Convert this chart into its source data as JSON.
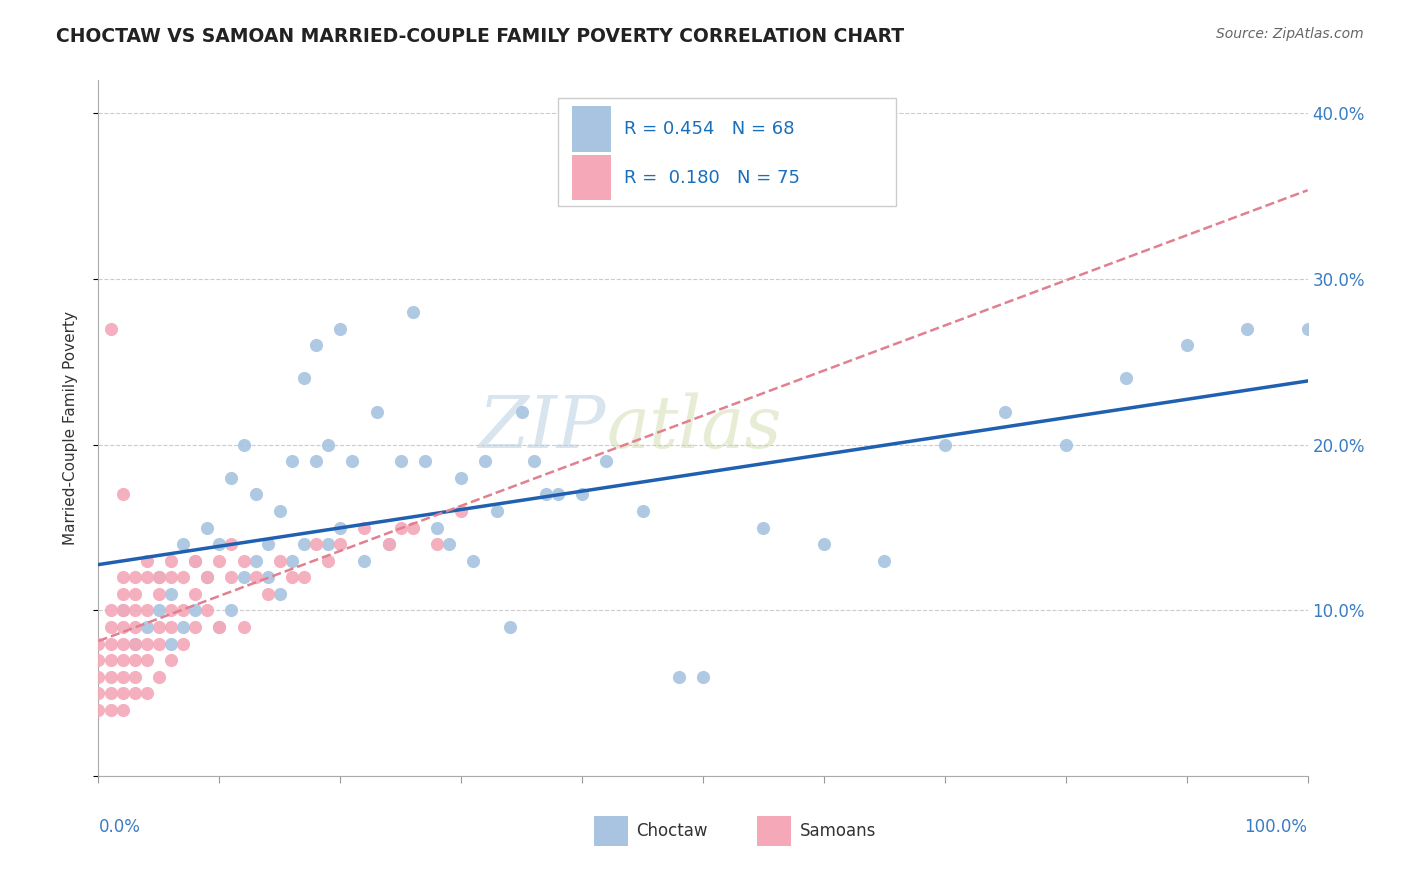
{
  "title": "CHOCTAW VS SAMOAN MARRIED-COUPLE FAMILY POVERTY CORRELATION CHART",
  "source": "Source: ZipAtlas.com",
  "ylabel": "Married-Couple Family Poverty",
  "choctaw_R": "0.454",
  "choctaw_N": "68",
  "samoan_R": "0.180",
  "samoan_N": "75",
  "choctaw_color": "#a8c4e0",
  "samoan_color": "#f4a8b8",
  "choctaw_line_color": "#2060b0",
  "samoan_line_color": "#e08090",
  "watermark_zip": "ZIP",
  "watermark_atlas": "atlas",
  "xlim": [
    0.0,
    1.0
  ],
  "ylim": [
    0.0,
    0.42
  ],
  "ytick_vals": [
    0.0,
    0.1,
    0.2,
    0.3,
    0.4
  ],
  "ytick_labels": [
    "",
    "10.0%",
    "20.0%",
    "30.0%",
    "40.0%"
  ],
  "choctaw_points": [
    [
      0.02,
      0.1
    ],
    [
      0.03,
      0.08
    ],
    [
      0.04,
      0.09
    ],
    [
      0.05,
      0.1
    ],
    [
      0.05,
      0.12
    ],
    [
      0.06,
      0.08
    ],
    [
      0.06,
      0.11
    ],
    [
      0.07,
      0.09
    ],
    [
      0.07,
      0.14
    ],
    [
      0.08,
      0.1
    ],
    [
      0.08,
      0.13
    ],
    [
      0.09,
      0.12
    ],
    [
      0.09,
      0.15
    ],
    [
      0.1,
      0.09
    ],
    [
      0.1,
      0.14
    ],
    [
      0.11,
      0.1
    ],
    [
      0.11,
      0.18
    ],
    [
      0.12,
      0.12
    ],
    [
      0.12,
      0.2
    ],
    [
      0.13,
      0.13
    ],
    [
      0.13,
      0.17
    ],
    [
      0.14,
      0.12
    ],
    [
      0.14,
      0.14
    ],
    [
      0.15,
      0.11
    ],
    [
      0.15,
      0.16
    ],
    [
      0.16,
      0.13
    ],
    [
      0.16,
      0.19
    ],
    [
      0.17,
      0.14
    ],
    [
      0.17,
      0.24
    ],
    [
      0.18,
      0.19
    ],
    [
      0.18,
      0.26
    ],
    [
      0.19,
      0.14
    ],
    [
      0.19,
      0.2
    ],
    [
      0.2,
      0.15
    ],
    [
      0.2,
      0.27
    ],
    [
      0.21,
      0.19
    ],
    [
      0.22,
      0.13
    ],
    [
      0.23,
      0.22
    ],
    [
      0.24,
      0.14
    ],
    [
      0.25,
      0.19
    ],
    [
      0.26,
      0.28
    ],
    [
      0.27,
      0.19
    ],
    [
      0.28,
      0.15
    ],
    [
      0.29,
      0.14
    ],
    [
      0.3,
      0.18
    ],
    [
      0.31,
      0.13
    ],
    [
      0.32,
      0.19
    ],
    [
      0.33,
      0.16
    ],
    [
      0.34,
      0.09
    ],
    [
      0.35,
      0.22
    ],
    [
      0.36,
      0.19
    ],
    [
      0.37,
      0.17
    ],
    [
      0.38,
      0.17
    ],
    [
      0.4,
      0.17
    ],
    [
      0.42,
      0.19
    ],
    [
      0.45,
      0.16
    ],
    [
      0.48,
      0.06
    ],
    [
      0.5,
      0.06
    ],
    [
      0.55,
      0.15
    ],
    [
      0.6,
      0.14
    ],
    [
      0.65,
      0.13
    ],
    [
      0.7,
      0.2
    ],
    [
      0.75,
      0.22
    ],
    [
      0.8,
      0.2
    ],
    [
      0.85,
      0.24
    ],
    [
      0.9,
      0.26
    ],
    [
      0.95,
      0.27
    ],
    [
      1.0,
      0.27
    ]
  ],
  "samoan_points": [
    [
      0.0,
      0.04
    ],
    [
      0.0,
      0.05
    ],
    [
      0.0,
      0.06
    ],
    [
      0.0,
      0.07
    ],
    [
      0.0,
      0.08
    ],
    [
      0.01,
      0.04
    ],
    [
      0.01,
      0.05
    ],
    [
      0.01,
      0.06
    ],
    [
      0.01,
      0.07
    ],
    [
      0.01,
      0.08
    ],
    [
      0.01,
      0.09
    ],
    [
      0.01,
      0.1
    ],
    [
      0.01,
      0.27
    ],
    [
      0.02,
      0.04
    ],
    [
      0.02,
      0.05
    ],
    [
      0.02,
      0.06
    ],
    [
      0.02,
      0.07
    ],
    [
      0.02,
      0.08
    ],
    [
      0.02,
      0.09
    ],
    [
      0.02,
      0.1
    ],
    [
      0.02,
      0.11
    ],
    [
      0.02,
      0.12
    ],
    [
      0.02,
      0.17
    ],
    [
      0.03,
      0.05
    ],
    [
      0.03,
      0.06
    ],
    [
      0.03,
      0.07
    ],
    [
      0.03,
      0.08
    ],
    [
      0.03,
      0.09
    ],
    [
      0.03,
      0.1
    ],
    [
      0.03,
      0.11
    ],
    [
      0.03,
      0.12
    ],
    [
      0.04,
      0.05
    ],
    [
      0.04,
      0.07
    ],
    [
      0.04,
      0.08
    ],
    [
      0.04,
      0.1
    ],
    [
      0.04,
      0.12
    ],
    [
      0.04,
      0.13
    ],
    [
      0.05,
      0.06
    ],
    [
      0.05,
      0.08
    ],
    [
      0.05,
      0.09
    ],
    [
      0.05,
      0.11
    ],
    [
      0.05,
      0.12
    ],
    [
      0.06,
      0.07
    ],
    [
      0.06,
      0.09
    ],
    [
      0.06,
      0.1
    ],
    [
      0.06,
      0.12
    ],
    [
      0.06,
      0.13
    ],
    [
      0.07,
      0.08
    ],
    [
      0.07,
      0.1
    ],
    [
      0.07,
      0.12
    ],
    [
      0.08,
      0.09
    ],
    [
      0.08,
      0.11
    ],
    [
      0.08,
      0.13
    ],
    [
      0.09,
      0.1
    ],
    [
      0.09,
      0.12
    ],
    [
      0.1,
      0.09
    ],
    [
      0.1,
      0.13
    ],
    [
      0.11,
      0.12
    ],
    [
      0.11,
      0.14
    ],
    [
      0.12,
      0.09
    ],
    [
      0.12,
      0.13
    ],
    [
      0.13,
      0.12
    ],
    [
      0.14,
      0.11
    ],
    [
      0.15,
      0.13
    ],
    [
      0.16,
      0.12
    ],
    [
      0.17,
      0.12
    ],
    [
      0.18,
      0.14
    ],
    [
      0.19,
      0.13
    ],
    [
      0.2,
      0.14
    ],
    [
      0.22,
      0.15
    ],
    [
      0.24,
      0.14
    ],
    [
      0.25,
      0.15
    ],
    [
      0.26,
      0.15
    ],
    [
      0.28,
      0.14
    ],
    [
      0.3,
      0.16
    ]
  ]
}
